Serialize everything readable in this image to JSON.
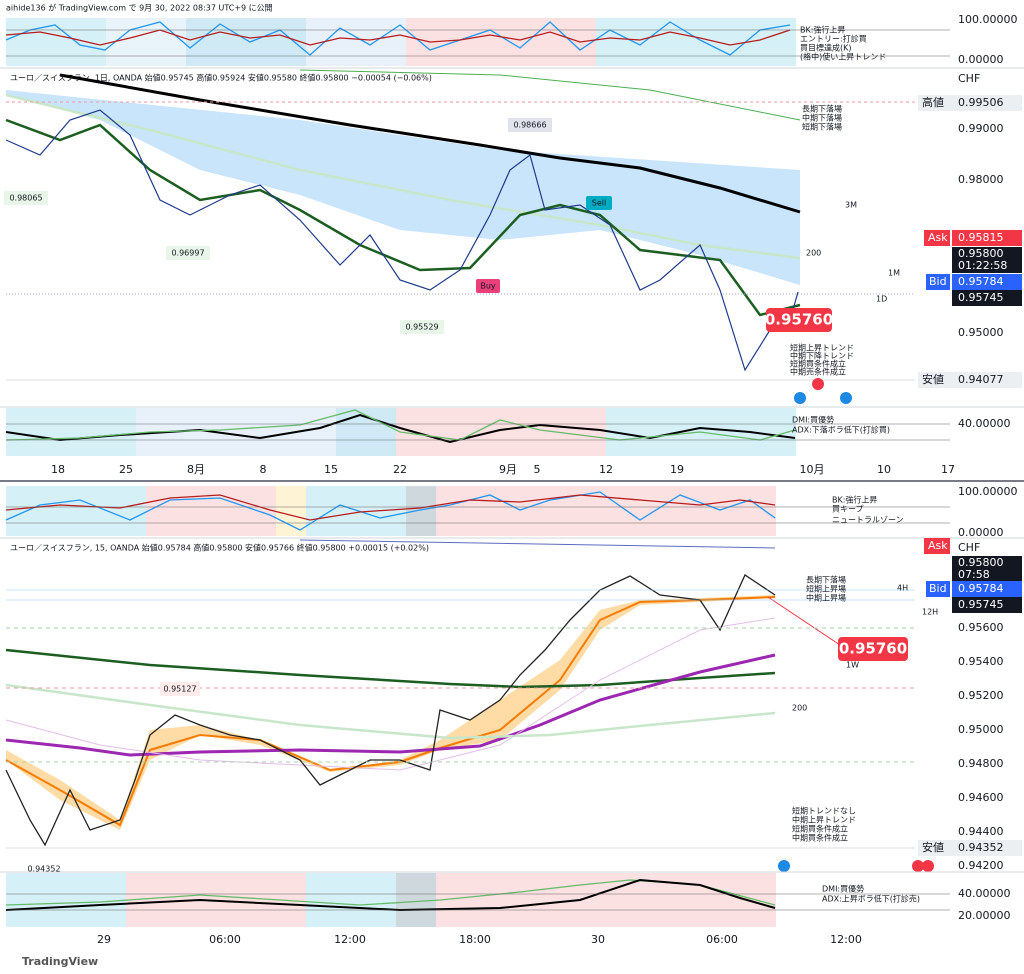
{
  "header": {
    "publisher": "aihide136 が TradingView.com で 9月 30, 2022 08:37 UTC+9 に公開"
  },
  "daily": {
    "osc_axis": [
      "100.00000",
      "0.00000"
    ],
    "osc_notes": [
      "BK:強行上昇",
      "エントリー:打診買",
      "買目標達成(K)",
      "(格中)使い上昇トレンド"
    ],
    "legend": "ユーロ／スイスフラン, 1日, OANDA  始値0.95745  高値0.95924  安値0.95580  終値0.95800  −0.00054 (−0.06%)",
    "currency": "CHF",
    "price_axis": [
      "0.99000",
      "0.98000",
      "0.95000"
    ],
    "high_tag": [
      "高値",
      "0.99506"
    ],
    "ask_tag": [
      "Ask",
      "0.95815"
    ],
    "last_tag": [
      "0.95800",
      "01:22:58"
    ],
    "bid_tag": [
      "Bid",
      "0.95784"
    ],
    "close_tag": "0.95745",
    "low_tag": [
      "安値",
      "0.94077"
    ],
    "big_price": "0.95760",
    "annotations": [
      "0.98666",
      "0.98065",
      "0.96997",
      "0.95529",
      "Buy",
      "Sell",
      "3M",
      "200",
      "1M",
      "1D"
    ],
    "notes_top": [
      "長期下落場",
      "中期下落場",
      "短期下落場"
    ],
    "notes_bottom": [
      "短期上昇トレンド",
      "中期下降トレンド",
      "短期買条件成立",
      "中期売条件成立"
    ],
    "osc2_axis": "40.00000",
    "osc2_notes": [
      "DMI:買優勢",
      "ADX:下落ボラ低下(打診買)"
    ],
    "x_axis": [
      "18",
      "25",
      "8月",
      "8",
      "15",
      "22",
      "9月",
      "5",
      "12",
      "19",
      "10月",
      "10",
      "17"
    ]
  },
  "intraday": {
    "osc_axis": [
      "100.00000",
      "0.00000"
    ],
    "osc_notes": [
      "BK:強行上昇",
      "買キープ",
      "ニュートラルゾーン"
    ],
    "legend": "ユーロ／スイスフラン, 15, OANDA  始値0.95784  高値0.95800  安値0.95766  終値0.95800  +0.00015 (+0.02%)",
    "currency": "CHF",
    "price_axis": [
      "0.95600",
      "0.95400",
      "0.95200",
      "0.95000",
      "0.94800",
      "0.94600",
      "0.94400",
      "0.94200"
    ],
    "ask_tag": "Ask",
    "last_tag": [
      "0.95800",
      "07:58"
    ],
    "bid_tag": [
      "Bid",
      "0.95784"
    ],
    "close_tag": "0.95745",
    "low_tag": [
      "安値",
      "0.94352"
    ],
    "big_price": "0.95760",
    "annotations": [
      "0.95127",
      "0.94352",
      "1W",
      "200",
      "4H",
      "12H"
    ],
    "notes_top": [
      "長期下落場",
      "短期上昇場",
      "中期上昇場"
    ],
    "notes_bottom": [
      "短期トレンドなし",
      "中期上昇トレンド",
      "短期買条件成立",
      "中期買条件成立"
    ],
    "osc2_axis": [
      "40.00000",
      "20.00000"
    ],
    "osc2_notes": [
      "DMI:買優勢",
      "ADX:上昇ボラ低下(打診売)"
    ],
    "x_axis": [
      "29",
      "06:00",
      "12:00",
      "18:00",
      "30",
      "06:00",
      "12:00"
    ]
  },
  "footer": {
    "brand": "TradingView"
  }
}
